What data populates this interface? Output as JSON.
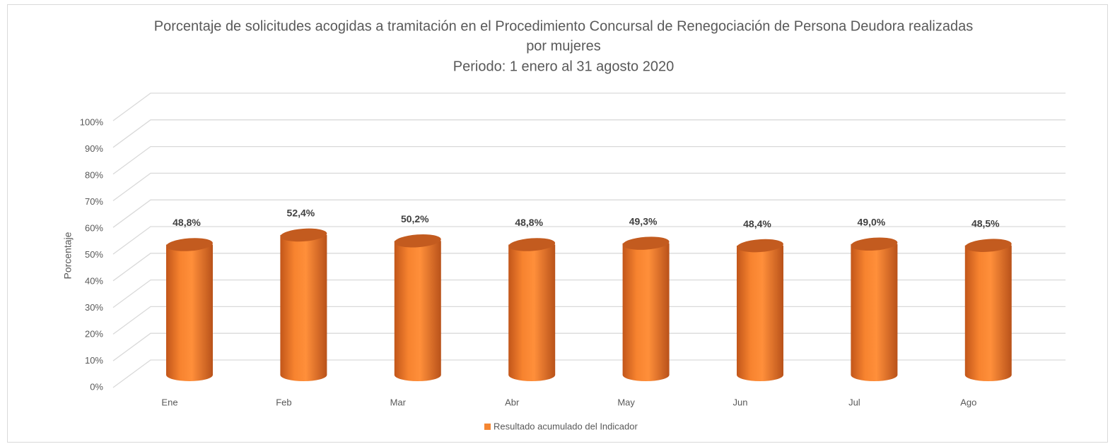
{
  "chart_data": {
    "type": "bar3d",
    "title": [
      "Porcentaje de solicitudes acogidas a tramitación en el Procedimiento Concursal de Renegociación de Persona Deudora realizadas",
      "por mujeres",
      "Periodo: 1 enero al 31 agosto 2020"
    ],
    "y_label": "Porcentaje",
    "categories": [
      "Ene",
      "Feb",
      "Mar",
      "Abr",
      "May",
      "Jun",
      "Jul",
      "Ago"
    ],
    "series": [
      {
        "name": "Resultado acumulado del Indicador",
        "color": "#f58632",
        "values": [
          48.8,
          52.4,
          50.2,
          48.8,
          49.3,
          48.4,
          49.0,
          48.5
        ],
        "value_labels": [
          "48,8%",
          "52,4%",
          "50,2%",
          "48,8%",
          "49,3%",
          "48,4%",
          "49,0%",
          "48,5%"
        ]
      }
    ],
    "ylim": [
      0,
      100
    ],
    "yticks": [
      {
        "value": 0,
        "label": "0%"
      },
      {
        "value": 10,
        "label": "10%"
      },
      {
        "value": 20,
        "label": "20%"
      },
      {
        "value": 30,
        "label": "30%"
      },
      {
        "value": 40,
        "label": "40%"
      },
      {
        "value": 50,
        "label": "50%"
      },
      {
        "value": 60,
        "label": "60%"
      },
      {
        "value": 70,
        "label": "70%"
      },
      {
        "value": 80,
        "label": "80%"
      },
      {
        "value": 90,
        "label": "90%"
      },
      {
        "value": 100,
        "label": "100%"
      }
    ],
    "grid": true,
    "legend": "bottom"
  }
}
